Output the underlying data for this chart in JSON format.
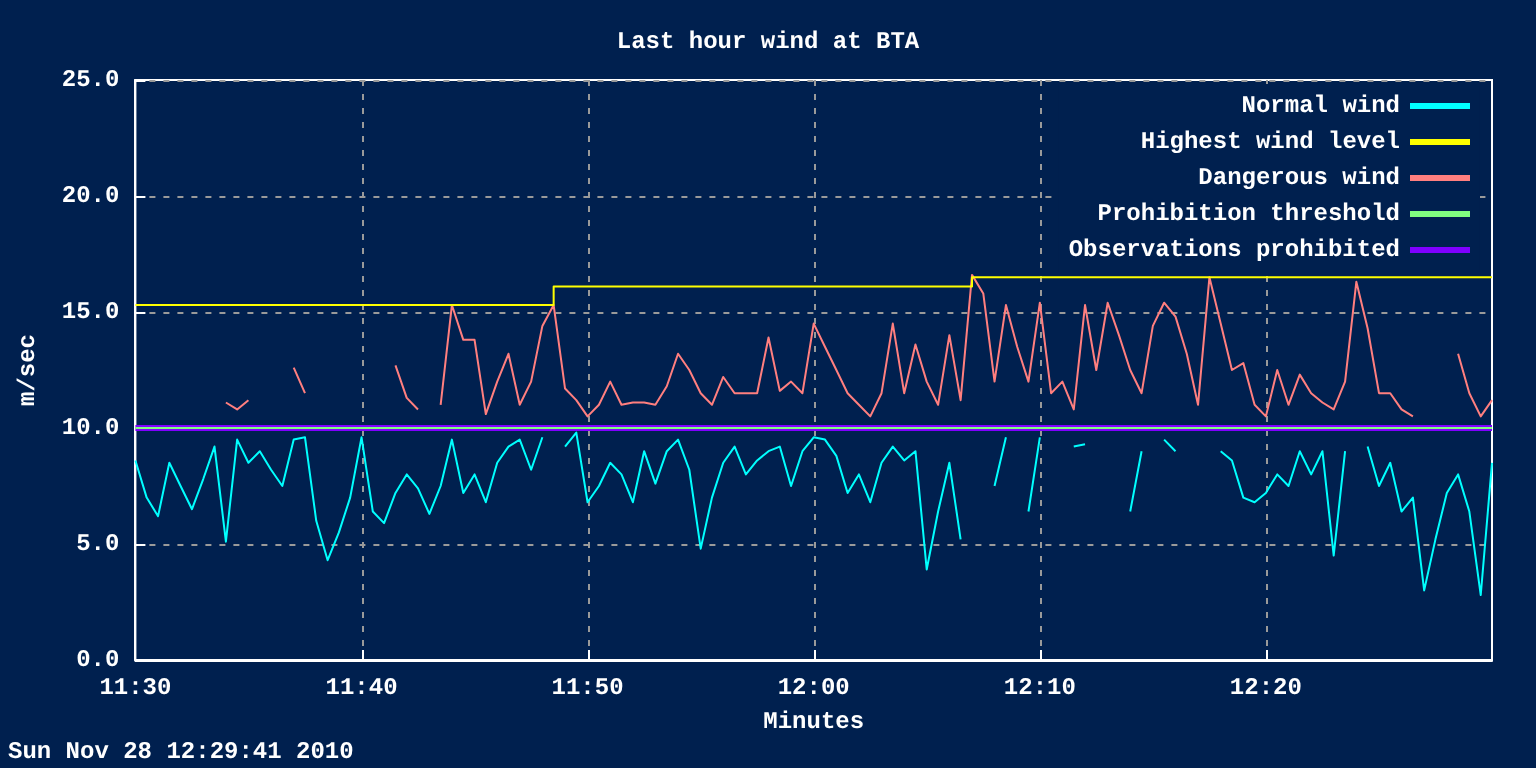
{
  "chart_data": {
    "type": "line",
    "title": "Last hour wind at BTA",
    "xlabel": "Minutes",
    "ylabel": "m/sec",
    "annotations": [
      "Sun Nov 28 12:29:41 2010"
    ],
    "xlim": [
      11.5,
      12.5
    ],
    "ylim": [
      0,
      25
    ],
    "xticks": [
      {
        "value": 11.5,
        "label": "11:30"
      },
      {
        "value": 11.6667,
        "label": "11:40"
      },
      {
        "value": 11.8333,
        "label": "11:50"
      },
      {
        "value": 12,
        "label": "12:00"
      },
      {
        "value": 12.1667,
        "label": "12:10"
      },
      {
        "value": 12.3333,
        "label": "12:20"
      }
    ],
    "yticks": [
      {
        "value": 0,
        "label": "0.0"
      },
      {
        "value": 5,
        "label": "5.0"
      },
      {
        "value": 10,
        "label": "10.0"
      },
      {
        "value": 15,
        "label": "15.0"
      },
      {
        "value": 20,
        "label": "20.0"
      },
      {
        "value": 25,
        "label": "25.0"
      }
    ],
    "grid": true,
    "legend": "top right",
    "marker": "none",
    "x": [
      11.5,
      11.5083,
      11.5167,
      11.525,
      11.5333,
      11.5417,
      11.55,
      11.5583,
      11.5667,
      11.575,
      11.5833,
      11.5917,
      11.6,
      11.6083,
      11.6167,
      11.625,
      11.6333,
      11.6417,
      11.65,
      11.6583,
      11.6667,
      11.675,
      11.6833,
      11.6917,
      11.7,
      11.7083,
      11.7167,
      11.725,
      11.7333,
      11.7417,
      11.75,
      11.7583,
      11.7667,
      11.775,
      11.7833,
      11.7917,
      11.8,
      11.8083,
      11.8167,
      11.825,
      11.8333,
      11.8417,
      11.85,
      11.8583,
      11.8667,
      11.875,
      11.8833,
      11.8917,
      11.9,
      11.9083,
      11.9167,
      11.925,
      11.9333,
      11.9417,
      11.95,
      11.9583,
      11.9667,
      11.975,
      11.9833,
      11.9917,
      12,
      12.0083,
      12.0167,
      12.025,
      12.0333,
      12.0417,
      12.05,
      12.0583,
      12.0667,
      12.075,
      12.0833,
      12.0917,
      12.1,
      12.1083,
      12.1167,
      12.125,
      12.1333,
      12.1417,
      12.15,
      12.1583,
      12.1667,
      12.175,
      12.1833,
      12.1917,
      12.2,
      12.2083,
      12.2167,
      12.225,
      12.2333,
      12.2417,
      12.25,
      12.2583,
      12.2667,
      12.275,
      12.2833,
      12.2917,
      12.3,
      12.3083,
      12.3167,
      12.325,
      12.3333,
      12.3417,
      12.35,
      12.3583,
      12.3667,
      12.375,
      12.3833,
      12.3917,
      12.4,
      12.4083,
      12.4167,
      12.425,
      12.4333,
      12.4417,
      12.45,
      12.4583,
      12.4667,
      12.475,
      12.4833,
      12.4917,
      12.5
    ],
    "ref_lines": [
      {
        "axis": "y",
        "value": 10,
        "label": "Prohibition threshold",
        "color": "#80ff80"
      }
    ],
    "series": [
      {
        "name": "Normal wind",
        "color": "#00ffff",
        "values": [
          8.6,
          7.0,
          6.2,
          8.5,
          7.5,
          6.5,
          7.8,
          9.2,
          5.1,
          9.5,
          8.5,
          9.0,
          8.2,
          7.5,
          9.5,
          9.6,
          6.0,
          4.3,
          5.5,
          7.0,
          9.6,
          6.4,
          5.9,
          7.2,
          8.0,
          7.4,
          6.3,
          7.5,
          9.5,
          7.2,
          8.0,
          6.8,
          8.5,
          9.2,
          9.5,
          8.2,
          9.6,
          null,
          9.2,
          9.8,
          6.8,
          7.5,
          8.5,
          8.0,
          6.8,
          9.0,
          7.6,
          9.0,
          9.5,
          8.2,
          4.8,
          7.0,
          8.5,
          9.2,
          8.0,
          8.6,
          9.0,
          9.2,
          7.5,
          9.0,
          9.6,
          9.5,
          8.8,
          7.2,
          8.0,
          6.8,
          8.5,
          9.2,
          8.6,
          9.0,
          3.9,
          6.4,
          8.5,
          5.2,
          null,
          null,
          7.5,
          9.6,
          null,
          6.4,
          9.6,
          null,
          null,
          9.2,
          9.3,
          null,
          null,
          null,
          6.4,
          9.0,
          null,
          9.5,
          9.0,
          null,
          null,
          null,
          9.0,
          8.6,
          7.0,
          6.8,
          7.2,
          8.0,
          7.5,
          9.0,
          8.0,
          9.0,
          4.5,
          9.0,
          null,
          9.2,
          7.5,
          8.5,
          6.4,
          7.0,
          3.0,
          5.2,
          7.2,
          8.0,
          6.4,
          2.8,
          8.5
        ]
      },
      {
        "name": "Highest wind level",
        "type": "step",
        "color": "#ffff00",
        "x": [
          11.5,
          11.8083,
          12.1167,
          12.5
        ],
        "values": [
          15.3,
          16.1,
          16.5,
          16.5
        ]
      },
      {
        "name": "Dangerous wind",
        "color": "#ff7f7f",
        "values": [
          null,
          null,
          null,
          null,
          null,
          null,
          null,
          null,
          11.1,
          10.8,
          11.2,
          null,
          null,
          null,
          12.6,
          11.5,
          null,
          null,
          null,
          null,
          null,
          null,
          null,
          12.7,
          11.3,
          10.8,
          null,
          11.0,
          15.3,
          13.8,
          13.8,
          10.6,
          12.0,
          13.2,
          11.0,
          12.0,
          14.4,
          15.3,
          11.7,
          11.2,
          10.5,
          11.0,
          12.0,
          11.0,
          11.1,
          11.1,
          11.0,
          11.8,
          13.2,
          12.5,
          11.5,
          11.0,
          12.2,
          11.5,
          11.5,
          11.5,
          13.9,
          11.6,
          12.0,
          11.5,
          14.5,
          13.5,
          12.5,
          11.5,
          11.0,
          10.5,
          11.5,
          14.5,
          11.5,
          13.6,
          12.0,
          11.0,
          14.0,
          11.2,
          16.6,
          15.8,
          12.0,
          15.3,
          13.5,
          12.0,
          15.4,
          11.5,
          12.0,
          10.8,
          15.3,
          12.5,
          15.4,
          14.0,
          12.5,
          11.5,
          14.4,
          15.4,
          14.8,
          13.2,
          11.0,
          16.5,
          14.5,
          12.5,
          12.8,
          11.0,
          10.5,
          12.5,
          11.0,
          12.3,
          11.5,
          11.1,
          10.8,
          12.0,
          16.3,
          14.3,
          11.5,
          11.5,
          10.8,
          10.5,
          null,
          null,
          null,
          13.2,
          11.5,
          10.5,
          11.2
        ]
      },
      {
        "name": "Observations prohibited",
        "color": "#8000ff",
        "x": [
          11.5,
          12.5
        ],
        "values": [
          10,
          10
        ]
      }
    ]
  }
}
